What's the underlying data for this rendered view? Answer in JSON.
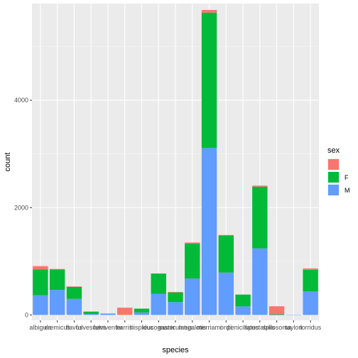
{
  "chart_data": {
    "type": "bar",
    "stacked": true,
    "xlabel": "species",
    "ylabel": "count",
    "ylim": [
      -100,
      5800
    ],
    "yticks": [
      0,
      2000,
      4000
    ],
    "ytick_labels": [
      "0",
      "2000",
      "4000"
    ],
    "grid": true,
    "legend_title": "sex",
    "legend_position": "right",
    "categories": [
      "albigula",
      "eremicus",
      "flavus",
      "fulvescens",
      "fulviventer",
      "harrisi",
      "hispidus",
      "leucogaster",
      "maniculatus",
      "megalotis",
      "merriami",
      "ordii",
      "penicillatus",
      "spectabilis",
      "spilosoma",
      "taylori",
      "torridus"
    ],
    "series": [
      {
        "name": "",
        "color": "#F8766D",
        "values": [
          60,
          10,
          10,
          0,
          0,
          136,
          0,
          0,
          10,
          20,
          50,
          10,
          0,
          20,
          150,
          0,
          25
        ]
      },
      {
        "name": "F",
        "color": "#00BA38",
        "values": [
          480,
          380,
          222,
          44,
          5,
          0,
          70,
          380,
          180,
          650,
          2520,
          690,
          220,
          1150,
          10,
          0,
          400
        ]
      },
      {
        "name": "M",
        "color": "#619CFF",
        "values": [
          370,
          467,
          300,
          19,
          20,
          0,
          48,
          392,
          240,
          680,
          3110,
          790,
          160,
          1240,
          2,
          5,
          442
        ]
      }
    ]
  }
}
